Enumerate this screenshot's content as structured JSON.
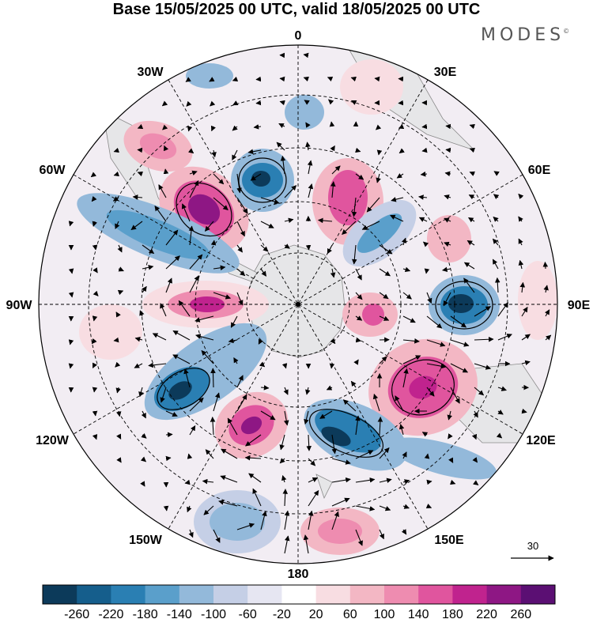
{
  "title": "Base 15/05/2025 00 UTC, valid 18/05/2025 00 UTC",
  "brand": {
    "name": "MODES",
    "mark": "©"
  },
  "map": {
    "projection": "south polar stereographic",
    "longitude_labels": [
      "0",
      "30E",
      "60E",
      "90E",
      "120E",
      "150E",
      "180",
      "150W",
      "120W",
      "90W",
      "60W",
      "30W"
    ],
    "graticule": "dashed"
  },
  "vector_legend": {
    "value": "30",
    "icon": "arrow-right-icon"
  },
  "colorbar": {
    "colors": [
      "#0c3a5a",
      "#155e8c",
      "#2a7fb3",
      "#5a9fcb",
      "#93b9da",
      "#c5cfe6",
      "#e6e6f2",
      "#ffffff",
      "#f8dde2",
      "#f3b7c4",
      "#ee8cb0",
      "#e0559e",
      "#c0238e",
      "#8e1784",
      "#5b0f73"
    ],
    "ticks": [
      "-260",
      "-220",
      "-180",
      "-140",
      "-100",
      "-60",
      "-20",
      "20",
      "60",
      "100",
      "140",
      "180",
      "220",
      "260"
    ]
  },
  "anomaly_fields": {
    "positive_color": "#e0559e",
    "negative_color": "#2a7fb3",
    "land_color": "#e9e9e9"
  }
}
